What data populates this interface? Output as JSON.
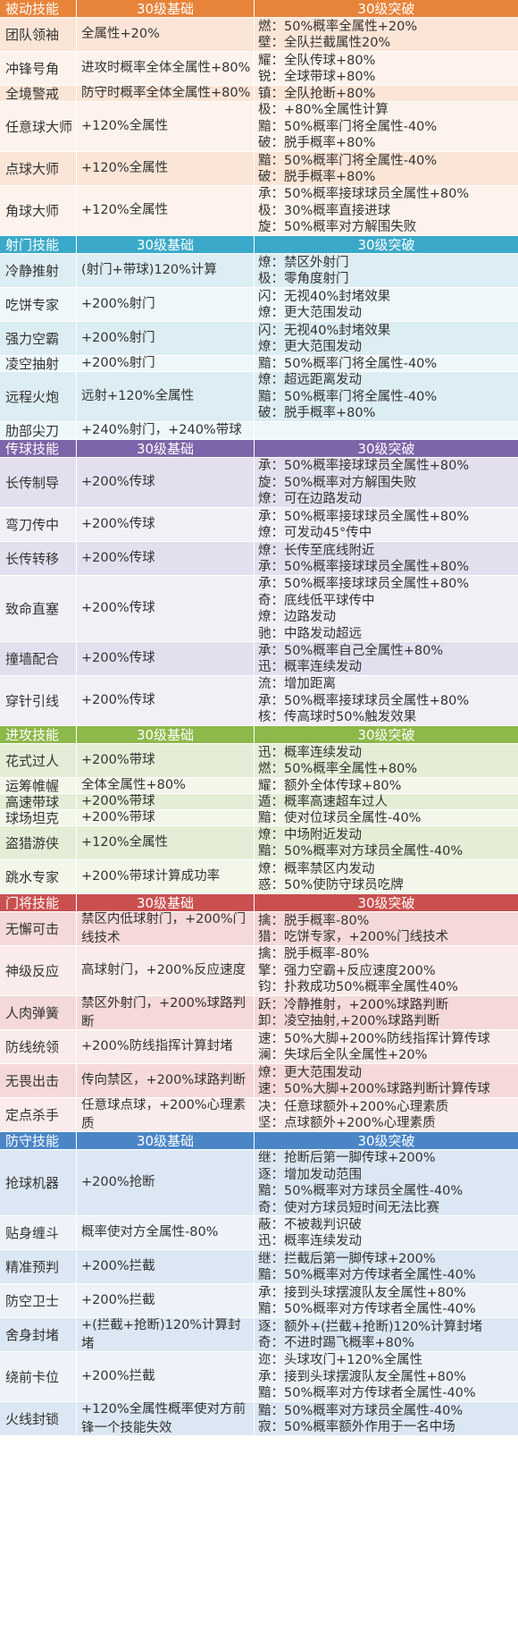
{
  "column_headers": {
    "base": "30级基础",
    "breakthrough": "30级突破"
  },
  "sections": [
    {
      "title": "被动技能",
      "header_color": "#e8833a",
      "band_a": "#fbe5d6",
      "band_b": "#fef3ec",
      "rows": [
        {
          "name": "团队领袖",
          "base": "全属性+20%",
          "breaks": [
            "燃：50%概率全属性+20%",
            "壁：全队拦截属性20%"
          ]
        },
        {
          "name": "冲锋号角",
          "base": "进攻时概率全体全属性+80%",
          "breaks": [
            "耀：全队传球+80%",
            "锐：全球带球+80%"
          ]
        },
        {
          "name": "全境警戒",
          "base": "防守时概率全体全属性+80%",
          "breaks": [
            "镇：全队抢断+80%"
          ]
        },
        {
          "name": "任意球大师",
          "base": "+120%全属性",
          "breaks": [
            "极：+80%全属性计算",
            "黯：50%概率门将全属性-40%",
            "破：脱手概率+80%"
          ]
        },
        {
          "name": "点球大师",
          "base": "+120%全属性",
          "breaks": [
            "黯：50%概率门将全属性-40%",
            "破：脱手概率+80%"
          ]
        },
        {
          "name": "角球大师",
          "base": "+120%全属性",
          "breaks": [
            "承：50%概率接球球员全属性+80%",
            "极：30%概率直接进球",
            "旋：50%概率对方解围失败"
          ]
        }
      ]
    },
    {
      "title": "射门技能",
      "header_color": "#3aa9c9",
      "band_a": "#dcedf3",
      "band_b": "#eef7fa",
      "rows": [
        {
          "name": "冷静推射",
          "base": "(射门+带球)120%计算",
          "breaks": [
            "燎：禁区外射门",
            "极：零角度射门"
          ]
        },
        {
          "name": "吃饼专家",
          "base": "+200%射门",
          "breaks": [
            "闪：无视40%封堵效果",
            "燎：更大范围发动"
          ]
        },
        {
          "name": "强力空霸",
          "base": "+200%射门",
          "breaks": [
            "闪：无视40%封堵效果",
            "燎：更大范围发动"
          ]
        },
        {
          "name": "凌空抽射",
          "base": "+200%射门",
          "breaks": [
            "黯：50%概率门将全属性-40%"
          ]
        },
        {
          "name": "远程火炮",
          "base": "远射+120%全属性",
          "breaks": [
            "燎：超远距离发动",
            "黯：50%概率门将全属性-40%",
            "破：脱手概率+80%"
          ]
        },
        {
          "name": "肋部尖刀",
          "base": "+240%射门，+240%带球",
          "breaks": []
        }
      ]
    },
    {
      "title": "传球技能",
      "header_color": "#7e64a8",
      "band_a": "#e4dfee",
      "band_b": "#f2eff7",
      "rows": [
        {
          "name": "长传制导",
          "base": "+200%传球",
          "breaks": [
            "承：50%概率接球球员全属性+80%",
            "旋：50%概率对方解围失败",
            "燎：可在边路发动"
          ]
        },
        {
          "name": "弯刀传中",
          "base": "+200%传球",
          "breaks": [
            "承：50%概率接球球员全属性+80%",
            "燎：可发动45°传中"
          ]
        },
        {
          "name": "长传转移",
          "base": "+200%传球",
          "breaks": [
            "燎：长传至底线附近",
            "承：50%概率接球球员全属性+80%"
          ]
        },
        {
          "name": "致命直塞",
          "base": "+200%传球",
          "breaks": [
            "承：50%概率接球球员全属性+80%",
            "奇：底线低平球传中",
            "燎：边路发动",
            "驰：中路发动超远"
          ]
        },
        {
          "name": "撞墙配合",
          "base": "+200%传球",
          "breaks": [
            "承：50%概率自己全属性+80%",
            "迅：概率连续发动"
          ]
        },
        {
          "name": "穿针引线",
          "base": "+200%传球",
          "breaks": [
            "流：增加距离",
            "承：50%概率接球球员全属性+80%",
            "核：传高球时50%触发效果"
          ]
        }
      ]
    },
    {
      "title": "进攻技能",
      "header_color": "#8db84a",
      "band_a": "#e4eed6",
      "band_b": "#f2f7ea",
      "rows": [
        {
          "name": "花式过人",
          "base": "+200%带球",
          "breaks": [
            "迅：概率连续发动",
            "燃：50%概率全属性+80%"
          ]
        },
        {
          "name": "运筹帷幄",
          "base": "全体全属性+80%",
          "breaks": [
            "耀：额外全体传球+80%"
          ]
        },
        {
          "name": "高速带球",
          "base": "+200%带球",
          "breaks": [
            "遁：概率高速超车过人"
          ]
        },
        {
          "name": "球场坦克",
          "base": "+200%带球",
          "breaks": [
            "黯：使对位球员全属性-40%"
          ]
        },
        {
          "name": "盗猎游侠",
          "base": "+120%全属性",
          "breaks": [
            "燎：中场附近发动",
            "黯：50%概率对方球员全属性-40%"
          ]
        },
        {
          "name": "跳水专家",
          "base": "+200%带球计算成功率",
          "breaks": [
            "燎：概率禁区内发动",
            "惑：50%使防守球员吃牌"
          ]
        }
      ]
    },
    {
      "title": "门将技能",
      "header_color": "#c9504f",
      "band_a": "#f4d9d8",
      "band_b": "#faeceb",
      "rows": [
        {
          "name": "无懈可击",
          "base": "禁区内低球射门，+200%门线技术",
          "breaks": [
            "擒：脱手概率-80%",
            "猎：吃饼专家，+200%门线技术"
          ]
        },
        {
          "name": "神级反应",
          "base": "高球射门，+200%反应速度",
          "breaks": [
            "擒：脱手概率-80%",
            "擎：强力空霸+反应速度200%",
            "钧：扑救成功50%概率全属性40%"
          ]
        },
        {
          "name": "人肉弹簧",
          "base": "禁区外射门，+200%球路判断",
          "breaks": [
            "跃：冷静推射，+200%球路判断",
            "卸：凌空抽射,+200%球路判断"
          ]
        },
        {
          "name": "防线统领",
          "base": "+200%防线指挥计算封堵",
          "breaks": [
            "速：50%大脚+200%防线指挥计算传球",
            "澜：失球后全队全属性+20%"
          ]
        },
        {
          "name": "无畏出击",
          "base": "传向禁区，+200%球路判断",
          "breaks": [
            "燎：更大范围发动",
            "速：50%大脚+200%球路判断计算传球"
          ]
        },
        {
          "name": "定点杀手",
          "base": "任意球点球，+200%心理素质",
          "breaks": [
            "决：任意球额外+200%心理素质",
            "坚：点球额外+200%心理素质"
          ]
        }
      ]
    },
    {
      "title": "防守技能",
      "header_color": "#4a86c6",
      "band_a": "#dbe7f3",
      "band_b": "#edf3f9",
      "rows": [
        {
          "name": "抢球机器",
          "base": "+200%抢断",
          "breaks": [
            "继：抢断后第一脚传球+200%",
            "逐：增加发动范围",
            "黯：50%概率对方球员全属性-40%",
            "奇：使对方球员短时间无法比赛"
          ]
        },
        {
          "name": "贴身缠斗",
          "base": "概率使对方全属性-80%",
          "breaks": [
            "蔽：不被裁判识破",
            "迅：概率连续发动"
          ]
        },
        {
          "name": "精准预判",
          "base": "+200%拦截",
          "breaks": [
            "继：拦截后第一脚传球+200%",
            "黯：50%概率对方传球者全属性-40%"
          ]
        },
        {
          "name": "防空卫士",
          "base": "+200%拦截",
          "breaks": [
            "承：接到头球摆渡队友全属性+80%",
            "黯：50%概率对方传球者全属性-40%"
          ]
        },
        {
          "name": "舍身封堵",
          "base": "+(拦截+抢断)120%计算封堵",
          "breaks": [
            "逐：额外+(拦截+抢断)120%计算封堵",
            "奇：不进时踢飞概率+80%"
          ]
        },
        {
          "name": "绕前卡位",
          "base": "+200%拦截",
          "breaks": [
            "迩：头球攻门+120%全属性",
            "承：接到头球摆渡队友全属性+80%",
            "黯：50%概率对方传球者全属性-40%"
          ]
        },
        {
          "name": "火线封锁",
          "base": "+120%全属性概率使对方前锋一个技能失效",
          "breaks": [
            "黯：50%概率对方球员全属性-40%",
            "寂：50%概率额外作用于一名中场"
          ]
        }
      ]
    }
  ]
}
